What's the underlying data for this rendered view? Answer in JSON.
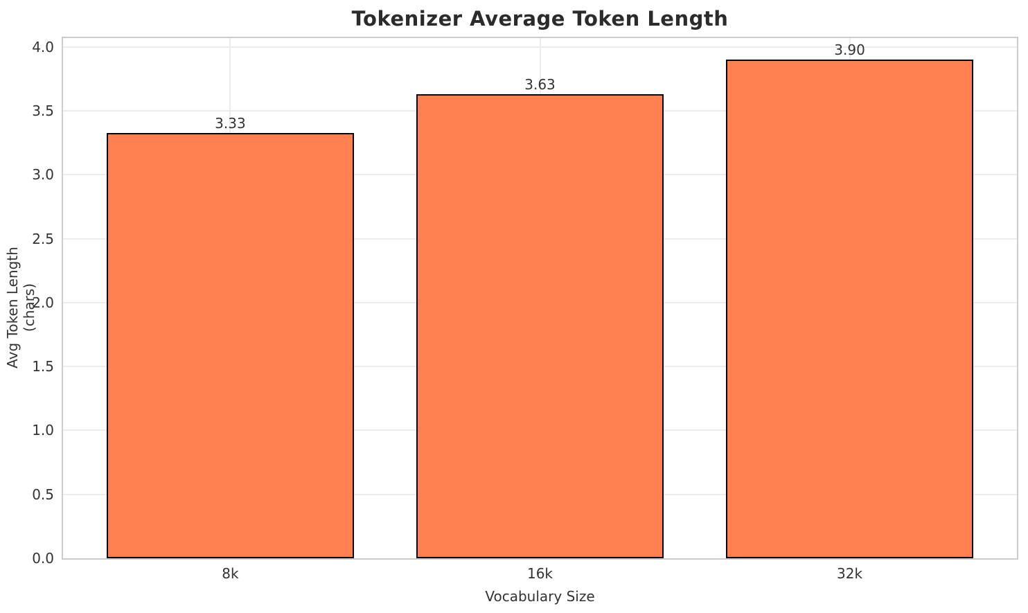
{
  "chart_data": {
    "type": "bar",
    "title": "Tokenizer Average Token Length",
    "xlabel": "Vocabulary Size",
    "ylabel": "Avg Token Length (chars)",
    "categories": [
      "8k",
      "16k",
      "32k"
    ],
    "values": [
      3.33,
      3.63,
      3.9
    ],
    "value_labels": [
      "3.33",
      "3.63",
      "3.90"
    ],
    "ytick_labels": [
      "0.0",
      "0.5",
      "1.0",
      "1.5",
      "2.0",
      "2.5",
      "3.0",
      "3.5",
      "4.0"
    ],
    "ylim": [
      0,
      4.07
    ],
    "grid": true,
    "legend": "none",
    "colors": {
      "bar_fill": "#FF7F50",
      "bar_edge": "#000000",
      "grid": "#ececec",
      "frame": "#cccccc",
      "tick_text": "#333333",
      "title_text": "#2b2b2b",
      "background": "#ffffff"
    }
  }
}
